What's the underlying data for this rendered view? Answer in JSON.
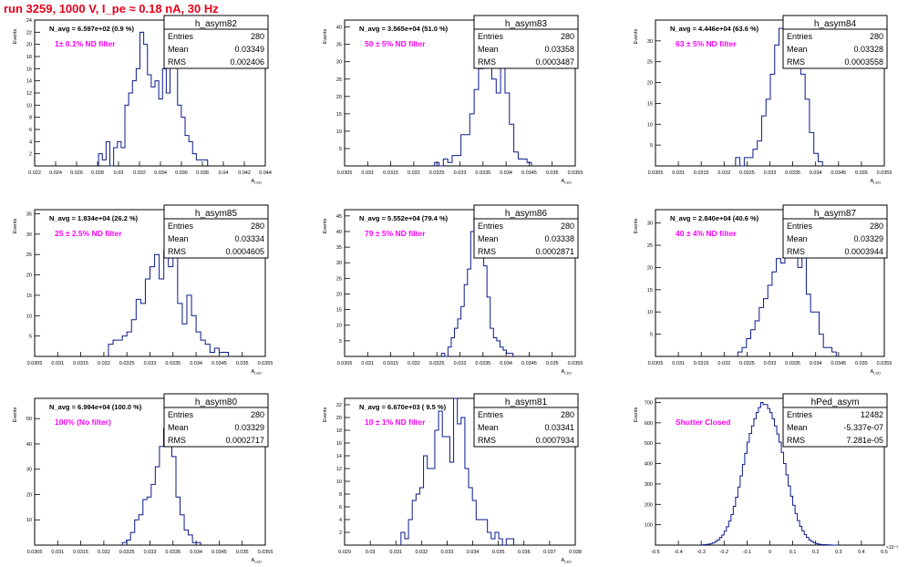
{
  "title": "run 3259,  1000 V, I_pe ≈ 0.18 nA,  30 Hz",
  "colors": {
    "title": "#e8001a",
    "histogram_line": "#0a1a8c",
    "filter_label": "#ff00ff",
    "frame": "#000000"
  },
  "chart_data": [
    {
      "type": "bar",
      "name": "h_asym82",
      "stats": {
        "entries": "280",
        "mean": "0.03349",
        "rms": "0.002406"
      },
      "navg": "N_avg = 6.597e+02 (0.9 %)",
      "filter": "1± 0.1% ND filter",
      "ylabel": "Events",
      "xlabel": "A_LED",
      "xlim": [
        0.022,
        0.044
      ],
      "ylim": [
        0,
        24
      ],
      "xticks": [
        0.022,
        0.024,
        0.026,
        0.028,
        0.03,
        0.032,
        0.034,
        0.036,
        0.038,
        0.04,
        0.042,
        0.044
      ],
      "xticklabels": [
        "0.022",
        "0.024",
        "0.026",
        "0.028",
        "0.03",
        "0.032",
        "0.034",
        "0.036",
        "0.038",
        "0.04",
        "0.042",
        "0.044"
      ],
      "yticks": [
        2,
        4,
        6,
        8,
        10,
        12,
        14,
        16,
        18,
        20,
        22,
        24
      ],
      "bin_edges_range": [
        0.0281,
        0.0385
      ],
      "values": [
        2,
        1,
        4,
        0,
        3,
        4,
        3,
        10,
        12,
        14,
        16,
        22,
        20,
        15,
        13,
        14,
        11,
        16,
        12,
        23,
        18,
        10,
        8,
        5,
        4,
        2,
        1,
        1,
        1
      ]
    },
    {
      "type": "bar",
      "name": "h_asym83",
      "stats": {
        "entries": "280",
        "mean": "0.03358",
        "rms": "0.0003487"
      },
      "navg": "N_avg = 3.565e+04 (51.0 %)",
      "filter": "50 ± 5% ND filter",
      "ylabel": "Events",
      "xlabel": "A_LED",
      "xlim": [
        0.0305,
        0.0355
      ],
      "ylim": [
        0,
        42
      ],
      "xticks": [
        0.0305,
        0.031,
        0.0315,
        0.032,
        0.0325,
        0.033,
        0.0335,
        0.034,
        0.0345,
        0.035,
        0.0355
      ],
      "xticklabels": [
        "0.0305",
        "0.031",
        "0.0315",
        "0.032",
        "0.0325",
        "0.033",
        "0.0335",
        "0.034",
        "0.0345",
        "0.035",
        "0.0355"
      ],
      "yticks": [
        5,
        10,
        15,
        20,
        25,
        30,
        35,
        40
      ],
      "bin_edges_range": [
        0.03245,
        0.03455
      ],
      "values": [
        1,
        0,
        2,
        1,
        3,
        3,
        9,
        9,
        15,
        22,
        28,
        39,
        33,
        25,
        21,
        29,
        21,
        12,
        4,
        2,
        2,
        1
      ]
    },
    {
      "type": "bar",
      "name": "h_asym84",
      "stats": {
        "entries": "280",
        "mean": "0.03328",
        "rms": "0.0003558"
      },
      "navg": "N_avg = 4.446e+04 (63.6 %)",
      "filter": "63 ± 5% ND filter",
      "ylabel": "Events",
      "xlabel": "A_LED",
      "xlim": [
        0.0305,
        0.0355
      ],
      "ylim": [
        0,
        35
      ],
      "xticks": [
        0.0305,
        0.031,
        0.0315,
        0.032,
        0.0325,
        0.033,
        0.0335,
        0.034,
        0.0345,
        0.035,
        0.0355
      ],
      "xticklabels": [
        "0.0305",
        "0.031",
        "0.0315",
        "0.032",
        "0.0325",
        "0.033",
        "0.0335",
        "0.034",
        "0.0345",
        "0.035",
        "0.0355"
      ],
      "yticks": [
        5,
        10,
        15,
        20,
        25,
        30
      ],
      "bin_edges_range": [
        0.03225,
        0.03415
      ],
      "values": [
        2,
        0,
        2,
        2,
        4,
        6,
        12,
        16,
        22,
        29,
        33,
        31,
        28,
        30,
        25,
        22,
        16,
        8,
        3,
        1
      ]
    },
    {
      "type": "bar",
      "name": "h_asym85",
      "stats": {
        "entries": "280",
        "mean": "0.03334",
        "rms": "0.0004605"
      },
      "navg": "N_avg = 1.834e+04 (26.2 %)",
      "filter": "25 ± 2.5% ND filter",
      "ylabel": "Events",
      "xlabel": "A_LED",
      "xlim": [
        0.0305,
        0.0355
      ],
      "ylim": [
        0,
        36
      ],
      "xticks": [
        0.0305,
        0.031,
        0.0315,
        0.032,
        0.0325,
        0.033,
        0.0335,
        0.034,
        0.0345,
        0.035,
        0.0355
      ],
      "xticklabels": [
        "0.0305",
        "0.031",
        "0.0315",
        "0.032",
        "0.0325",
        "0.033",
        "0.0335",
        "0.034",
        "0.0345",
        "0.035",
        "0.0355"
      ],
      "yticks": [
        5,
        10,
        15,
        20,
        25,
        30,
        35
      ],
      "bin_edges_range": [
        0.0321,
        0.0347
      ],
      "values": [
        3,
        4,
        4,
        5,
        6,
        9,
        14,
        13,
        19,
        22,
        25,
        19,
        26,
        22,
        33,
        13,
        8,
        15,
        10,
        6,
        4,
        3,
        1,
        2,
        1,
        1
      ]
    },
    {
      "type": "bar",
      "name": "h_asym86",
      "stats": {
        "entries": "280",
        "mean": "0.03338",
        "rms": "0.0002871"
      },
      "navg": "N_avg = 5.552e+04 (79.4 %)",
      "filter": "79 ± 5% ND filter",
      "ylabel": "Events",
      "xlabel": "A_LED",
      "xlim": [
        0.0305,
        0.0355
      ],
      "ylim": [
        0,
        47
      ],
      "xticks": [
        0.0305,
        0.031,
        0.0315,
        0.032,
        0.0325,
        0.033,
        0.0335,
        0.034,
        0.0345,
        0.035,
        0.0355
      ],
      "xticklabels": [
        "0.0305",
        "0.031",
        "0.0315",
        "0.032",
        "0.0325",
        "0.033",
        "0.0335",
        "0.034",
        "0.0345",
        "0.035",
        "0.0355"
      ],
      "yticks": [
        5,
        10,
        15,
        20,
        25,
        30,
        35,
        40,
        45
      ],
      "bin_edges_range": [
        0.0326,
        0.03415
      ],
      "values": [
        1,
        0,
        3,
        6,
        9,
        12,
        16,
        23,
        28,
        40,
        45,
        32,
        45,
        29,
        19,
        9,
        6,
        5,
        3,
        2,
        1,
        1
      ]
    },
    {
      "type": "bar",
      "name": "h_asym87",
      "stats": {
        "entries": "280",
        "mean": "0.03329",
        "rms": "0.0003944"
      },
      "navg": "N_avg = 2.840e+04 (40.6 %)",
      "filter": "40 ± 4% ND filter",
      "ylabel": "Events",
      "xlabel": "A_LED",
      "xlim": [
        0.0305,
        0.0355
      ],
      "ylim": [
        0,
        33
      ],
      "xticks": [
        0.0305,
        0.031,
        0.0315,
        0.032,
        0.0325,
        0.033,
        0.0335,
        0.034,
        0.0345,
        0.035,
        0.0355
      ],
      "xticklabels": [
        "0.0305",
        "0.031",
        "0.0315",
        "0.032",
        "0.0325",
        "0.033",
        "0.0335",
        "0.034",
        "0.0345",
        "0.035",
        "0.0355"
      ],
      "yticks": [
        5,
        10,
        15,
        20,
        25,
        30
      ],
      "bin_edges_range": [
        0.0323,
        0.03445
      ],
      "values": [
        1,
        2,
        4,
        6,
        8,
        11,
        13,
        16,
        19,
        22,
        21,
        26,
        24,
        31,
        20,
        23,
        14,
        10,
        10,
        5,
        2,
        2,
        1
      ]
    },
    {
      "type": "bar",
      "name": "h_asym80",
      "stats": {
        "entries": "280",
        "mean": "0.03329",
        "rms": "0.0002717"
      },
      "navg": "N_avg = 6.994e+04 (100.0 %)",
      "filter": "100% (No filter)",
      "ylabel": "Events",
      "xlabel": "A_LED",
      "xlim": [
        0.0305,
        0.0355
      ],
      "ylim": [
        0,
        58
      ],
      "xticks": [
        0.0305,
        0.031,
        0.0315,
        0.032,
        0.0325,
        0.033,
        0.0335,
        0.034,
        0.0345,
        0.035,
        0.0355
      ],
      "xticklabels": [
        "0.0305",
        "0.031",
        "0.0315",
        "0.032",
        "0.0325",
        "0.033",
        "0.0335",
        "0.034",
        "0.0345",
        "0.035",
        "0.0355"
      ],
      "yticks": [
        10,
        20,
        30,
        40,
        50
      ],
      "bin_edges_range": [
        0.0324,
        0.0341
      ],
      "values": [
        1,
        2,
        5,
        10,
        12,
        18,
        19,
        24,
        31,
        39,
        46,
        55,
        35,
        19,
        12,
        6,
        4,
        1,
        1
      ]
    },
    {
      "type": "bar",
      "name": "h_asym81",
      "stats": {
        "entries": "280",
        "mean": "0.03341",
        "rms": "0.0007934"
      },
      "navg": "N_avg = 6.670e+03 ( 9.5 %)",
      "filter": "10 ± 1% ND filter",
      "ylabel": "Events",
      "xlabel": "A_LED",
      "xlim": [
        0.029,
        0.038
      ],
      "ylim": [
        0,
        23
      ],
      "xticks": [
        0.029,
        0.03,
        0.031,
        0.032,
        0.033,
        0.034,
        0.035,
        0.036,
        0.037,
        0.038
      ],
      "xticklabels": [
        "0.029",
        "0.03",
        "0.031",
        "0.032",
        "0.033",
        "0.034",
        "0.035",
        "0.036",
        "0.037",
        "0.038"
      ],
      "yticks": [
        2,
        4,
        6,
        8,
        10,
        12,
        14,
        16,
        18,
        20,
        22
      ],
      "bin_edges_range": [
        0.0312,
        0.0356
      ],
      "values": [
        2,
        1,
        4,
        7,
        8,
        9,
        14,
        12,
        12,
        18,
        21,
        17,
        17,
        13,
        23,
        19,
        20,
        12,
        9,
        7,
        4,
        4,
        4,
        2,
        1,
        2,
        1,
        0,
        1,
        1
      ]
    },
    {
      "type": "bar",
      "name": "hPed_asym",
      "stats": {
        "entries": "12482",
        "mean": "-5.337e-07",
        "rms": "7.281e-05"
      },
      "navg": "",
      "filter": "Shutter Closed",
      "ylabel": "Events",
      "xlabel": "",
      "xlim": [
        -0.5,
        0.5
      ],
      "ylim": [
        0,
        720
      ],
      "x_exponent": "×10⁻³",
      "xticks": [
        -0.5,
        -0.4,
        -0.3,
        -0.2,
        -0.1,
        0,
        0.1,
        0.2,
        0.3,
        0.4,
        0.5
      ],
      "xticklabels": [
        "-0.5",
        "-0.4",
        "-0.3",
        "-0.2",
        "-0.1",
        "0",
        "0.1",
        "0.2",
        "0.3",
        "0.4",
        "0.5"
      ],
      "yticks": [
        100,
        200,
        300,
        400,
        500,
        600,
        700
      ],
      "bin_edges_range": [
        -0.3,
        0.3
      ],
      "values": [
        1,
        2,
        3,
        5,
        8,
        12,
        18,
        26,
        37,
        50,
        68,
        90,
        118,
        150,
        190,
        235,
        285,
        340,
        395,
        450,
        505,
        548,
        585,
        620,
        650,
        675,
        700,
        690,
        690,
        670,
        650,
        620,
        585,
        545,
        505,
        455,
        400,
        345,
        290,
        240,
        195,
        155,
        120,
        92,
        70,
        52,
        38,
        26,
        18,
        12,
        8,
        5,
        3,
        2,
        2,
        1,
        1,
        0,
        0,
        0
      ]
    }
  ]
}
